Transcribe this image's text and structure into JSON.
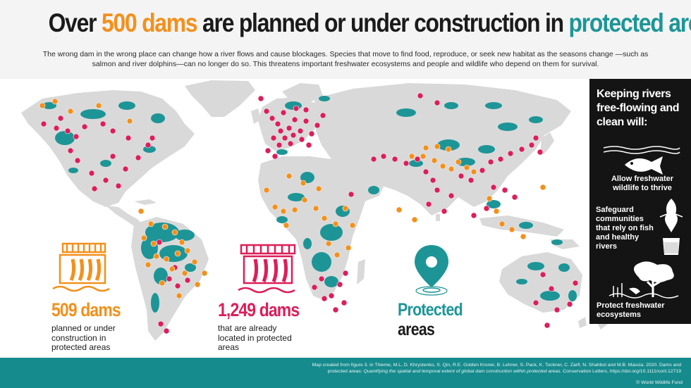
{
  "header": {
    "title_pre": "Over ",
    "title_num": "500 dams",
    "title_mid": " are planned or under construction in ",
    "title_end": "protected areas",
    "subtitle": "The wrong dam in the wrong place can change how a river flows and cause blockages. Species that move to find food, reproduce, or seek new habitat as the seasons change —such as salmon and river dolphins—can no longer do so. This threatens important freshwater ecosystems and people and wildlife who depend on them for survival."
  },
  "legend": {
    "planned": {
      "number": "509 dams",
      "desc": "planned or under construction in protected areas",
      "color": "#f3901d"
    },
    "existing": {
      "number": "1,249 dams",
      "desc": "that are already located in protected areas",
      "color": "#dc1e5a"
    },
    "protected": {
      "line1": "Protected",
      "line2": "areas",
      "color": "#1d9597"
    }
  },
  "panel": {
    "title": "Keeping rivers free-flowing and clean will:",
    "benefits": [
      {
        "text": "Allow freshwater wildlife to thrive",
        "icon": "fish-icon"
      },
      {
        "text": "Safeguard communities that rely on fish and healthy rivers",
        "icon": "fish-glass-icon"
      },
      {
        "text": "Protect freshwater ecosystems",
        "icon": "ecosystem-icon"
      }
    ]
  },
  "footer": {
    "citation_1": "Map created from figure 3. in Thieme, M.L, D. Khrystenko, S. Qin, R.E. Golden Kroner, B. Lehner, S. Pack, K. Tockner, C. Zarfl, N. Shahbol and M.B. Mascia. 2020. Dams and",
    "citation_2a": "protected areas: ",
    "citation_2b": "Quantifying the spatial and temporal extent of global dam construction within protected areas.",
    "citation_2c": " Conservation Letters, https://doi.org/10.1111/conl.12719",
    "credit": "© World Wildlife Fund"
  },
  "colors": {
    "land": "#d9d9d9",
    "protected": "#1d9597",
    "existing_dam": "#dc1e5a",
    "planned_dam": "#f3901d",
    "footer": "#168b8d",
    "panel": "#141414"
  }
}
